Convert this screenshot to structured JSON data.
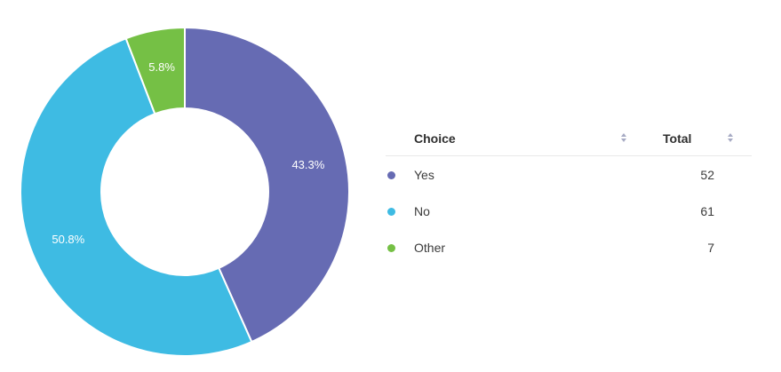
{
  "chart_data": {
    "type": "pie",
    "donut": true,
    "slices": [
      {
        "label": "Yes",
        "value": 52,
        "percent_label": "43.3%",
        "color": "#666bb3"
      },
      {
        "label": "No",
        "value": 61,
        "percent_label": "50.8%",
        "color": "#3ebbe3"
      },
      {
        "label": "Other",
        "value": 7,
        "percent_label": "5.8%",
        "color": "#75c045"
      }
    ]
  },
  "table": {
    "headers": {
      "choice": "Choice",
      "total": "Total"
    },
    "rows": [
      {
        "label": "Yes",
        "total": "52",
        "color": "#666bb3"
      },
      {
        "label": "No",
        "total": "61",
        "color": "#3ebbe3"
      },
      {
        "label": "Other",
        "total": "7",
        "color": "#75c045"
      }
    ]
  }
}
